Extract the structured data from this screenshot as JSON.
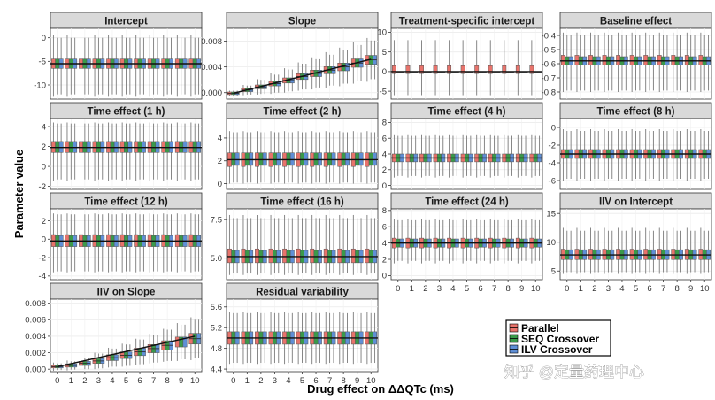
{
  "figure": {
    "xlabel": "Drug effect on ΔΔQTc (ms)",
    "ylabel": "Parameter value"
  },
  "legend": {
    "placement": "bottom-right",
    "items": [
      {
        "label": "Parallel",
        "color": "#e8736b"
      },
      {
        "label": "SEQ Crossover",
        "color": "#3a9a4a"
      },
      {
        "label": "ILV Crossover",
        "color": "#5f8fd6"
      }
    ]
  },
  "watermark": {
    "text": "知乎 @定量药理中心"
  },
  "chart_data": [
    {
      "type": "box",
      "title": "Intercept",
      "x": [
        0,
        1,
        2,
        3,
        4,
        5,
        6,
        7,
        8,
        9,
        10
      ],
      "ylim": [
        -13,
        2
      ],
      "yticks": [
        0,
        -5,
        -10
      ],
      "ytick_labels": [
        "0",
        "-5",
        "-10"
      ],
      "reference": -5.5,
      "series": [
        {
          "name": "Parallel",
          "q1": -6.5,
          "median": -5.5,
          "q3": -4.5,
          "whisker_low": -12.5,
          "whisker_high": 0.5
        },
        {
          "name": "SEQ Crossover",
          "q1": -6.5,
          "median": -5.5,
          "q3": -4.5,
          "whisker_low": -12,
          "whisker_high": 0
        },
        {
          "name": "ILV Crossover",
          "q1": -6.5,
          "median": -5.5,
          "q3": -4.5,
          "whisker_low": -12,
          "whisker_high": 0
        }
      ]
    },
    {
      "type": "box",
      "title": "Slope",
      "x": [
        0,
        1,
        2,
        3,
        4,
        5,
        6,
        7,
        8,
        9,
        10
      ],
      "ylim": [
        -0.001,
        0.01
      ],
      "yticks": [
        0,
        0.004,
        0.008
      ],
      "ytick_labels": [
        "0.000",
        "0.004",
        "0.008"
      ],
      "reference_line": {
        "from": -0.0001,
        "to": 0.0052
      },
      "series": [
        {
          "name": "Parallel",
          "median": [
            -0.0001,
            0.0004,
            0.0009,
            0.0014,
            0.0019,
            0.0025,
            0.003,
            0.0035,
            0.004,
            0.0046,
            0.0051
          ],
          "iqr_half": [
            0.0002,
            0.00025,
            0.0003,
            0.00035,
            0.0004,
            0.00045,
            0.0005,
            0.00055,
            0.0006,
            0.00065,
            0.0007
          ],
          "whisker_half": [
            0.0004,
            0.0008,
            0.0012,
            0.0016,
            0.0019,
            0.0022,
            0.0025,
            0.0028,
            0.003,
            0.0032,
            0.0034
          ]
        },
        {
          "name": "SEQ Crossover",
          "median": [
            -0.0001,
            0.0004,
            0.0009,
            0.0014,
            0.0019,
            0.0025,
            0.003,
            0.0035,
            0.004,
            0.0046,
            0.0051
          ],
          "iqr_half": [
            0.0002,
            0.00025,
            0.0003,
            0.00035,
            0.0004,
            0.00045,
            0.0005,
            0.00055,
            0.0006,
            0.00065,
            0.0007
          ],
          "whisker_half": [
            0.0004,
            0.0007,
            0.0011,
            0.0014,
            0.0017,
            0.002,
            0.0022,
            0.0024,
            0.0026,
            0.0028,
            0.003
          ]
        },
        {
          "name": "ILV Crossover",
          "median": [
            -0.0001,
            0.0004,
            0.0009,
            0.0014,
            0.0019,
            0.0025,
            0.003,
            0.0035,
            0.004,
            0.0046,
            0.0051
          ],
          "iqr_half": [
            0.0002,
            0.00025,
            0.0003,
            0.00035,
            0.0004,
            0.00045,
            0.0005,
            0.00055,
            0.0006,
            0.00065,
            0.0007
          ],
          "whisker_half": [
            0.0004,
            0.0007,
            0.0011,
            0.0014,
            0.0017,
            0.002,
            0.0022,
            0.0024,
            0.0026,
            0.0028,
            0.003
          ]
        }
      ]
    },
    {
      "type": "box",
      "title": "Treatment-specific intercept",
      "x": [
        0,
        1,
        2,
        3,
        4,
        5,
        6,
        7,
        8,
        9,
        10
      ],
      "ylim": [
        -7,
        11
      ],
      "yticks": [
        10,
        5,
        0,
        -5
      ],
      "ytick_labels": [
        "10",
        "5",
        "0",
        "-5"
      ],
      "reference": 0,
      "series": [
        {
          "name": "Parallel",
          "q1": -0.5,
          "median": 0,
          "q3": 1.5,
          "whisker_low": -6,
          "whisker_high": 8
        },
        {
          "name": "SEQ Crossover",
          "q1": 0,
          "median": 0,
          "q3": 0,
          "whisker_low": 0,
          "whisker_high": 0
        },
        {
          "name": "ILV Crossover",
          "q1": 0,
          "median": 0,
          "q3": 0,
          "whisker_low": 0,
          "whisker_high": 0
        }
      ]
    },
    {
      "type": "box",
      "title": "Baseline effect",
      "x": [
        0,
        1,
        2,
        3,
        4,
        5,
        6,
        7,
        8,
        9,
        10
      ],
      "ylim": [
        -0.85,
        -0.35
      ],
      "yticks": [
        -0.4,
        -0.5,
        -0.6,
        -0.7,
        -0.8
      ],
      "ytick_labels": [
        "-0.4",
        "-0.5",
        "-0.6",
        "-0.7",
        "-0.8"
      ],
      "reference": -0.58,
      "series": [
        {
          "name": "Parallel",
          "q1": -0.61,
          "median": -0.58,
          "q3": -0.54,
          "whisker_low": -0.8,
          "whisker_high": -0.38
        },
        {
          "name": "SEQ Crossover",
          "q1": -0.61,
          "median": -0.58,
          "q3": -0.55,
          "whisker_low": -0.79,
          "whisker_high": -0.4
        },
        {
          "name": "ILV Crossover",
          "q1": -0.61,
          "median": -0.58,
          "q3": -0.55,
          "whisker_low": -0.79,
          "whisker_high": -0.4
        }
      ]
    },
    {
      "type": "box",
      "title": "Time effect (1 h)",
      "x": [
        0,
        1,
        2,
        3,
        4,
        5,
        6,
        7,
        8,
        9,
        10
      ],
      "ylim": [
        -2.3,
        4.8
      ],
      "yticks": [
        4,
        2,
        0,
        -2
      ],
      "ytick_labels": [
        "4",
        "2",
        "0",
        "-2"
      ],
      "reference": 1.9,
      "series": [
        {
          "name": "Parallel",
          "q1": 1.4,
          "median": 1.9,
          "q3": 2.5,
          "whisker_low": -1.5,
          "whisker_high": 4.4
        },
        {
          "name": "SEQ Crossover",
          "q1": 1.4,
          "median": 1.9,
          "q3": 2.5,
          "whisker_low": -1.3,
          "whisker_high": 4.3
        },
        {
          "name": "ILV Crossover",
          "q1": 1.4,
          "median": 1.9,
          "q3": 2.5,
          "whisker_low": -1.3,
          "whisker_high": 4.3
        }
      ]
    },
    {
      "type": "box",
      "title": "Time effect (2 h)",
      "x": [
        0,
        1,
        2,
        3,
        4,
        5,
        6,
        7,
        8,
        9,
        10
      ],
      "ylim": [
        -0.5,
        5.7
      ],
      "yticks": [
        4,
        2,
        0
      ],
      "ytick_labels": [
        "4",
        "2",
        "0"
      ],
      "reference": 2.1,
      "series": [
        {
          "name": "Parallel",
          "q1": 1.5,
          "median": 2.1,
          "q3": 2.7,
          "whisker_low": 0,
          "whisker_high": 4.6
        },
        {
          "name": "SEQ Crossover",
          "q1": 1.6,
          "median": 2.1,
          "q3": 2.7,
          "whisker_low": 0.1,
          "whisker_high": 4.5
        },
        {
          "name": "ILV Crossover",
          "q1": 1.6,
          "median": 2.1,
          "q3": 2.7,
          "whisker_low": 0.1,
          "whisker_high": 4.5
        }
      ]
    },
    {
      "type": "box",
      "title": "Time effect (4 h)",
      "x": [
        0,
        1,
        2,
        3,
        4,
        5,
        6,
        7,
        8,
        9,
        10
      ],
      "ylim": [
        -0.5,
        8.5
      ],
      "yticks": [
        8,
        6,
        4,
        2,
        0
      ],
      "ytick_labels": [
        "8",
        "6",
        "4",
        "2",
        "0"
      ],
      "reference": 3.5,
      "series": [
        {
          "name": "Parallel",
          "q1": 3,
          "median": 3.5,
          "q3": 4,
          "whisker_low": 1,
          "whisker_high": 6.5
        },
        {
          "name": "SEQ Crossover",
          "q1": 3,
          "median": 3.5,
          "q3": 4,
          "whisker_low": 1.2,
          "whisker_high": 6.3
        },
        {
          "name": "ILV Crossover",
          "q1": 3,
          "median": 3.5,
          "q3": 4,
          "whisker_low": 1.2,
          "whisker_high": 6.3
        }
      ]
    },
    {
      "type": "box",
      "title": "Time effect (8 h)",
      "x": [
        0,
        1,
        2,
        3,
        4,
        5,
        6,
        7,
        8,
        9,
        10
      ],
      "ylim": [
        -7,
        1
      ],
      "yticks": [
        0,
        -2,
        -4,
        -6
      ],
      "ytick_labels": [
        "0",
        "-2",
        "-4",
        "-6"
      ],
      "reference": -3,
      "series": [
        {
          "name": "Parallel",
          "q1": -3.5,
          "median": -3,
          "q3": -2.5,
          "whisker_low": -6,
          "whisker_high": -0.2
        },
        {
          "name": "SEQ Crossover",
          "q1": -3.5,
          "median": -3,
          "q3": -2.5,
          "whisker_low": -5.8,
          "whisker_high": -0.4
        },
        {
          "name": "ILV Crossover",
          "q1": -3.5,
          "median": -3,
          "q3": -2.5,
          "whisker_low": -5.8,
          "whisker_high": -0.4
        }
      ]
    },
    {
      "type": "box",
      "title": "Time effect (12 h)",
      "x": [
        0,
        1,
        2,
        3,
        4,
        5,
        6,
        7,
        8,
        9,
        10
      ],
      "ylim": [
        -4.4,
        3.3
      ],
      "yticks": [
        2,
        0,
        -2,
        -4
      ],
      "ytick_labels": [
        "2",
        "0",
        "-2",
        "-4"
      ],
      "reference": -0.2,
      "series": [
        {
          "name": "Parallel",
          "q1": -0.8,
          "median": -0.2,
          "q3": 0.5,
          "whisker_low": -3.6,
          "whisker_high": 2.8
        },
        {
          "name": "SEQ Crossover",
          "q1": -0.8,
          "median": -0.2,
          "q3": 0.4,
          "whisker_low": -3.5,
          "whisker_high": 2.7
        },
        {
          "name": "ILV Crossover",
          "q1": -0.8,
          "median": -0.2,
          "q3": 0.4,
          "whisker_low": -3.5,
          "whisker_high": 2.7
        }
      ]
    },
    {
      "type": "box",
      "title": "Time effect (16 h)",
      "x": [
        0,
        1,
        2,
        3,
        4,
        5,
        6,
        7,
        8,
        9,
        10
      ],
      "ylim": [
        3.6,
        8.2
      ],
      "yticks": [
        7.5,
        5.0
      ],
      "ytick_labels": [
        "7.5",
        "5.0"
      ],
      "reference": 5.1,
      "series": [
        {
          "name": "Parallel",
          "q1": 4.7,
          "median": 5.1,
          "q3": 5.6,
          "whisker_low": 3.9,
          "whisker_high": 7.8
        },
        {
          "name": "SEQ Crossover",
          "q1": 4.7,
          "median": 5.1,
          "q3": 5.5,
          "whisker_low": 4,
          "whisker_high": 7.6
        },
        {
          "name": "ILV Crossover",
          "q1": 4.7,
          "median": 5.1,
          "q3": 5.5,
          "whisker_low": 4,
          "whisker_high": 7.6
        }
      ]
    },
    {
      "type": "box",
      "title": "Time effect (24 h)",
      "x": [
        0,
        1,
        2,
        3,
        4,
        5,
        6,
        7,
        8,
        9,
        10
      ],
      "ylim": [
        -0.5,
        8.2
      ],
      "yticks": [
        8,
        6,
        4,
        2,
        0
      ],
      "ytick_labels": [
        "8",
        "6",
        "4",
        "2",
        "0"
      ],
      "reference": 4,
      "series": [
        {
          "name": "Parallel",
          "q1": 3.4,
          "median": 4,
          "q3": 4.6,
          "whisker_low": 1.5,
          "whisker_high": 7
        },
        {
          "name": "SEQ Crossover",
          "q1": 3.5,
          "median": 4,
          "q3": 4.5,
          "whisker_low": 1.8,
          "whisker_high": 6.8
        },
        {
          "name": "ILV Crossover",
          "q1": 3.5,
          "median": 4,
          "q3": 4.5,
          "whisker_low": 1.8,
          "whisker_high": 6.8
        }
      ]
    },
    {
      "type": "box",
      "title": "IIV on Intercept",
      "x": [
        0,
        1,
        2,
        3,
        4,
        5,
        6,
        7,
        8,
        9,
        10
      ],
      "ylim": [
        3.5,
        15.8
      ],
      "yticks": [
        15,
        10,
        5
      ],
      "ytick_labels": [
        "15",
        "10",
        "5"
      ],
      "reference": 7.8,
      "series": [
        {
          "name": "Parallel",
          "q1": 7,
          "median": 7.8,
          "q3": 8.8,
          "whisker_low": 4.5,
          "whisker_high": 12.5
        },
        {
          "name": "SEQ Crossover",
          "q1": 7,
          "median": 7.8,
          "q3": 8.7,
          "whisker_low": 4.8,
          "whisker_high": 12
        },
        {
          "name": "ILV Crossover",
          "q1": 7,
          "median": 7.8,
          "q3": 8.7,
          "whisker_low": 4.8,
          "whisker_high": 12
        }
      ]
    },
    {
      "type": "box",
      "title": "IIV on Slope",
      "x": [
        0,
        1,
        2,
        3,
        4,
        5,
        6,
        7,
        8,
        9,
        10
      ],
      "ylim": [
        -0.0003,
        0.0085
      ],
      "yticks": [
        0.008,
        0.006,
        0.004,
        0.002,
        0
      ],
      "ytick_labels": [
        "0.008",
        "0.006",
        "0.004",
        "0.002",
        "0.000"
      ],
      "reference_line": {
        "from": 0.0003,
        "to": 0.004
      },
      "series": [
        {
          "name": "Parallel",
          "median": [
            0.0003,
            0.00045,
            0.0007,
            0.001,
            0.0014,
            0.0017,
            0.0021,
            0.0025,
            0.0029,
            0.0033,
            0.0037
          ],
          "iqr_half": [
            0.00015,
            0.0002,
            0.00025,
            0.0003,
            0.00035,
            0.0004,
            0.00045,
            0.0005,
            0.00055,
            0.0006,
            0.00065
          ],
          "whisker_half": [
            0.0005,
            0.0006,
            0.0008,
            0.001,
            0.0012,
            0.0014,
            0.0016,
            0.0018,
            0.002,
            0.0023,
            0.0026
          ]
        },
        {
          "name": "SEQ Crossover",
          "median": [
            0.0003,
            0.00045,
            0.0007,
            0.001,
            0.0014,
            0.0017,
            0.0021,
            0.0025,
            0.0029,
            0.0033,
            0.0037
          ],
          "iqr_half": [
            0.00015,
            0.0002,
            0.00025,
            0.0003,
            0.00035,
            0.0004,
            0.00045,
            0.0005,
            0.00055,
            0.0006,
            0.00065
          ],
          "whisker_half": [
            0.0004,
            0.0005,
            0.0007,
            0.0009,
            0.0011,
            0.0013,
            0.0015,
            0.0017,
            0.0019,
            0.0021,
            0.0023
          ]
        },
        {
          "name": "ILV Crossover",
          "median": [
            0.0003,
            0.00045,
            0.0007,
            0.001,
            0.0014,
            0.0017,
            0.0021,
            0.0025,
            0.0029,
            0.0033,
            0.0037
          ],
          "iqr_half": [
            0.00015,
            0.0002,
            0.00025,
            0.0003,
            0.00035,
            0.0004,
            0.00045,
            0.0005,
            0.00055,
            0.0006,
            0.00065
          ],
          "whisker_half": [
            0.0004,
            0.0005,
            0.0007,
            0.0009,
            0.0011,
            0.0013,
            0.0015,
            0.0017,
            0.0019,
            0.0021,
            0.0023
          ]
        }
      ]
    },
    {
      "type": "box",
      "title": "Residual variability",
      "x": [
        0,
        1,
        2,
        3,
        4,
        5,
        6,
        7,
        8,
        9,
        10
      ],
      "ylim": [
        4.35,
        5.75
      ],
      "yticks": [
        5.6,
        5.2,
        4.8,
        4.4
      ],
      "ytick_labels": [
        "5.6",
        "5.2",
        "4.8",
        "4.4"
      ],
      "reference": 5,
      "series": [
        {
          "name": "Parallel",
          "q1": 4.88,
          "median": 5,
          "q3": 5.12,
          "whisker_low": 4.5,
          "whisker_high": 5.5
        },
        {
          "name": "SEQ Crossover",
          "q1": 4.88,
          "median": 5,
          "q3": 5.12,
          "whisker_low": 4.52,
          "whisker_high": 5.48
        },
        {
          "name": "ILV Crossover",
          "q1": 4.88,
          "median": 5,
          "q3": 5.12,
          "whisker_low": 4.52,
          "whisker_high": 5.48
        }
      ]
    }
  ]
}
